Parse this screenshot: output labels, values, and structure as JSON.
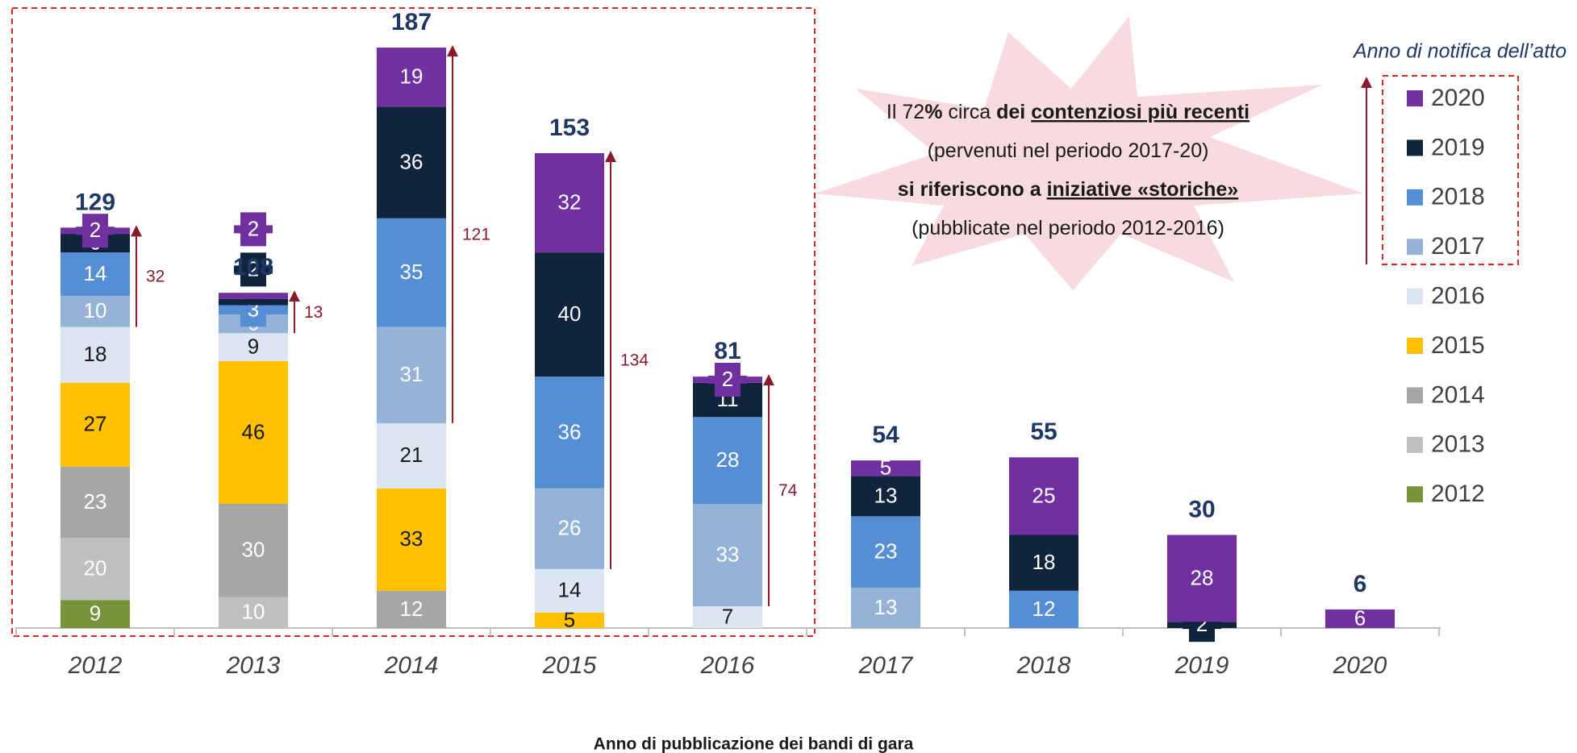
{
  "chart_data": {
    "type": "stacked_bar",
    "x_label": "Anno  di pubblicazione dei bandi di gara",
    "legend_title": "Anno di notifica dell’atto",
    "categories": [
      "2012",
      "2013",
      "2014",
      "2015",
      "2016",
      "2017",
      "2018",
      "2019",
      "2020"
    ],
    "totals": [
      129,
      108,
      187,
      153,
      81,
      54,
      55,
      30,
      6
    ],
    "recent_totals": [
      32,
      13,
      121,
      134,
      74
    ],
    "ylim": [
      0,
      200
    ],
    "series": [
      {
        "name": "2012",
        "color": "#77933c",
        "label_color": "#ffffff",
        "values": [
          9,
          null,
          null,
          null,
          null,
          null,
          null,
          null,
          null
        ]
      },
      {
        "name": "2013",
        "color": "#bfbfbf",
        "label_color": "#ffffff",
        "values": [
          20,
          10,
          null,
          null,
          null,
          null,
          null,
          null,
          null
        ]
      },
      {
        "name": "2014",
        "color": "#a6a6a6",
        "label_color": "#ffffff",
        "values": [
          23,
          30,
          12,
          null,
          null,
          null,
          null,
          null,
          null
        ]
      },
      {
        "name": "2015",
        "color": "#ffc000",
        "label_color": "#1a1a1a",
        "values": [
          27,
          46,
          33,
          5,
          null,
          null,
          null,
          null,
          null
        ]
      },
      {
        "name": "2016",
        "color": "#dce6f2",
        "label_color": "#1a1a1a",
        "values": [
          18,
          9,
          21,
          14,
          7,
          null,
          null,
          null,
          null
        ]
      },
      {
        "name": "2017",
        "color": "#95b3d7",
        "label_color": "#ffffff",
        "values": [
          10,
          6,
          31,
          26,
          33,
          13,
          null,
          null,
          null
        ]
      },
      {
        "name": "2018",
        "color": "#558ed5",
        "label_color": "#ffffff",
        "values": [
          14,
          3,
          35,
          36,
          28,
          23,
          12,
          null,
          null
        ]
      },
      {
        "name": "2019",
        "color": "#10243e",
        "label_color": "#ffffff",
        "values": [
          6,
          2,
          36,
          40,
          11,
          13,
          18,
          2,
          null
        ]
      },
      {
        "name": "2020",
        "color": "#7030a0",
        "label_color": "#ffffff",
        "values": [
          2,
          2,
          19,
          32,
          2,
          5,
          25,
          28,
          6
        ]
      }
    ],
    "callout": {
      "lines": [
        [
          {
            "text": "Il 72",
            "bold": false,
            "underline": false
          },
          {
            "text": "%",
            "bold": true,
            "underline": false
          },
          {
            "text": " circa ",
            "bold": false,
            "underline": false
          },
          {
            "text": "dei ",
            "bold": true,
            "underline": false
          },
          {
            "text": "contenziosi più recenti",
            "bold": true,
            "underline": true
          }
        ],
        [
          {
            "text": "(pervenuti nel periodo 2017-20)",
            "bold": false,
            "underline": false
          }
        ],
        [
          {
            "text": "si riferiscono a ",
            "bold": true,
            "underline": false
          },
          {
            "text": "iniziative «storiche»",
            "bold": true,
            "underline": true
          }
        ],
        [
          {
            "text": "(pubblicate nel periodo 2012-2016)",
            "bold": false,
            "underline": false
          }
        ]
      ]
    }
  }
}
